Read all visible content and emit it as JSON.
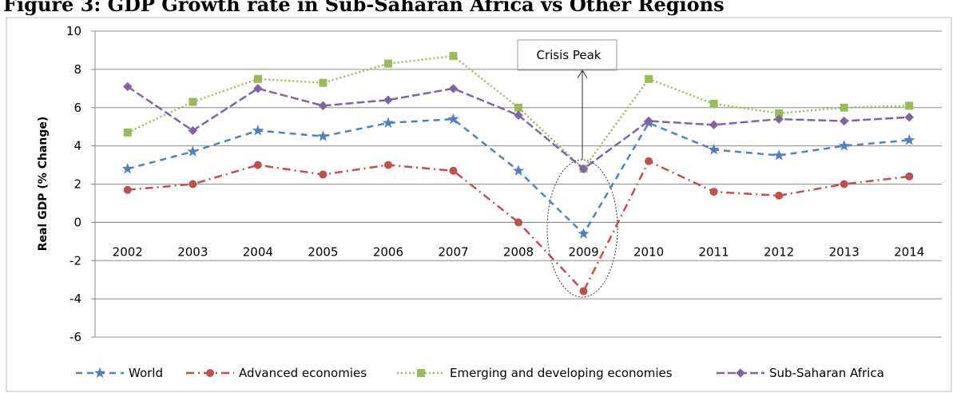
{
  "chart_data": {
    "type": "line",
    "title": "Figure 3: GDP Growth rate in Sub-Saharan Africa vs Other Regions",
    "y_label": "Real GDP (% Change)",
    "annotation": "Crisis Peak",
    "categories": [
      "2002",
      "2003",
      "2004",
      "2005",
      "2006",
      "2007",
      "2008",
      "2009",
      "2010",
      "2011",
      "2012",
      "2013",
      "2014"
    ],
    "series": [
      {
        "name": "World",
        "color": "#4f81bd",
        "marker": "star",
        "dash": "8,6",
        "values": [
          2.8,
          3.7,
          4.8,
          4.5,
          5.2,
          5.4,
          2.7,
          -0.6,
          5.2,
          3.8,
          3.5,
          4.0,
          4.3
        ]
      },
      {
        "name": "Advanced economies",
        "color": "#c0504d",
        "marker": "circle",
        "dash": "10,5,2,5",
        "values": [
          1.7,
          2.0,
          3.0,
          2.5,
          3.0,
          2.7,
          0.0,
          -3.6,
          3.2,
          1.6,
          1.4,
          2.0,
          2.4
        ]
      },
      {
        "name": "Emerging and developing economies",
        "color": "#9bbb59",
        "marker": "square",
        "dash": "2,3",
        "values": [
          4.7,
          6.3,
          7.5,
          7.3,
          8.3,
          8.7,
          6.0,
          2.8,
          7.5,
          6.2,
          5.7,
          6.0,
          6.1
        ]
      },
      {
        "name": "Sub-Saharan Africa",
        "color": "#8064a2",
        "marker": "diamond",
        "dash": "10,4",
        "values": [
          7.1,
          4.8,
          7.0,
          6.1,
          6.4,
          7.0,
          5.6,
          2.8,
          5.3,
          5.1,
          5.4,
          5.3,
          5.5
        ]
      }
    ],
    "ylim": [
      -6,
      10
    ],
    "yticks": [
      -6,
      -4,
      -2,
      0,
      2,
      4,
      6,
      8,
      10
    ],
    "grid": true,
    "legend": "bottom"
  }
}
